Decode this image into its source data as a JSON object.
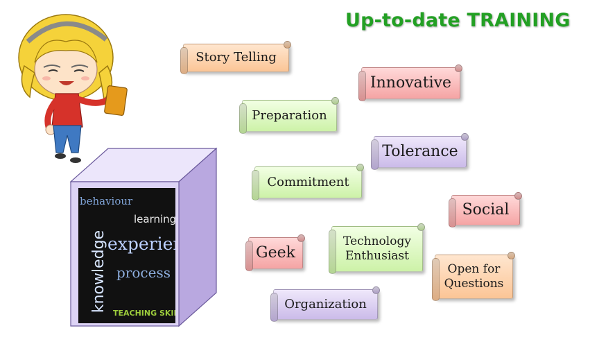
{
  "title": "Up-to-date TRAINING",
  "banners": [
    {
      "label": "Story Telling",
      "color": "orange"
    },
    {
      "label": "Innovative",
      "color": "red"
    },
    {
      "label": "Preparation",
      "color": "green"
    },
    {
      "label": "Tolerance",
      "color": "purple"
    },
    {
      "label": "Commitment",
      "color": "green"
    },
    {
      "label": "Social",
      "color": "red"
    },
    {
      "label": "Geek",
      "color": "red"
    },
    {
      "label": "Technology Enthusiast",
      "color": "green"
    },
    {
      "label": "Open for Questions",
      "color": "orange"
    },
    {
      "label": "Organization",
      "color": "purple"
    }
  ],
  "word_cloud": {
    "behaviour": "behaviour",
    "learning": "learning",
    "knowledge": "knowledge",
    "experience": "experience",
    "process": "process",
    "teaching_skills": "TEACHING SKILLS"
  }
}
